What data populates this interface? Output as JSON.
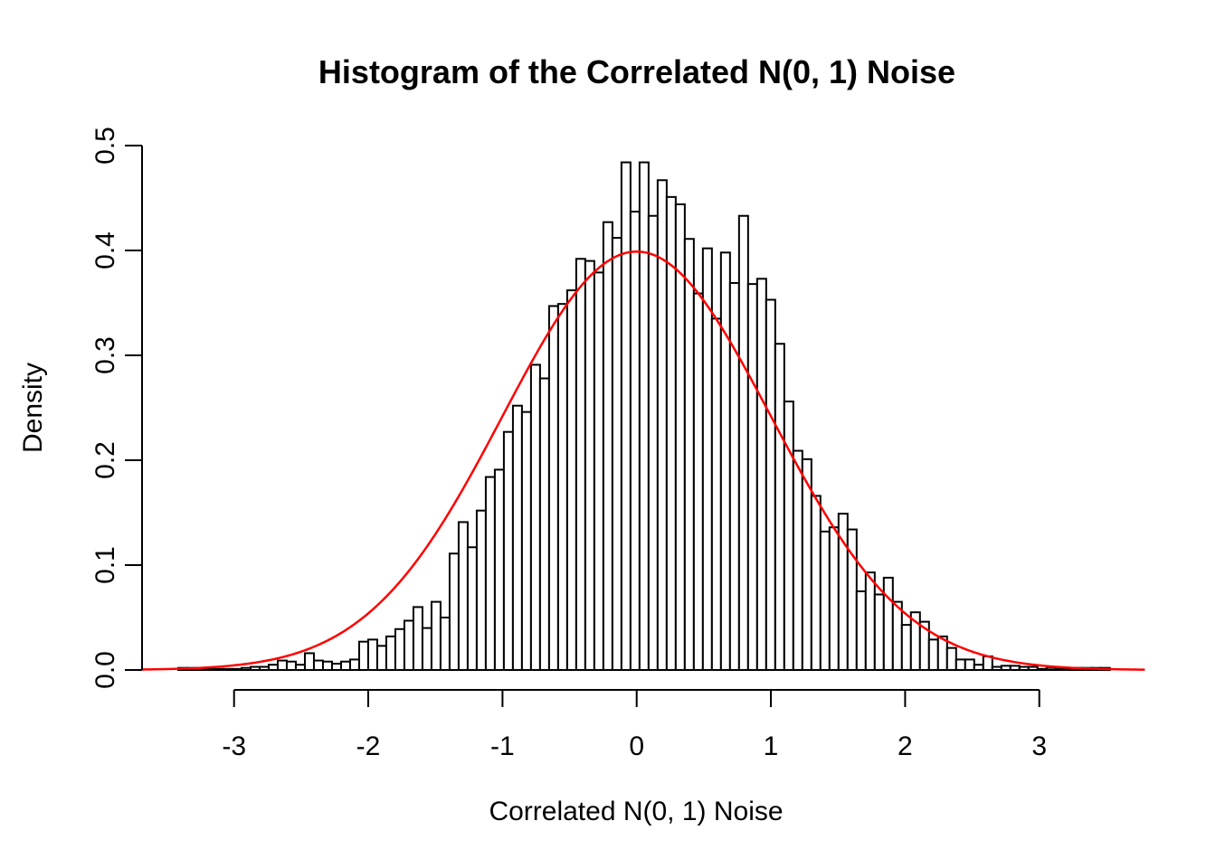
{
  "figure": {
    "title": "Histogram of the Correlated N(0, 1) Noise",
    "x_label": "Correlated N(0, 1) Noise",
    "y_label": "Density"
  },
  "chart_data": {
    "type": "bar",
    "subtype": "histogram",
    "title": "Histogram of the Correlated N(0, 1) Noise",
    "xlabel": "Correlated N(0, 1) Noise",
    "ylabel": "Density",
    "xlim": [
      -3.7,
      3.85
    ],
    "ylim": [
      0,
      0.5
    ],
    "grid": false,
    "x_tick_labels": [
      "-3",
      "-2",
      "-1",
      "0",
      "1",
      "2",
      "3"
    ],
    "x_tick_values": [
      -3,
      -2,
      -1,
      0,
      1,
      2,
      3
    ],
    "y_tick_labels": [
      "0.0",
      "0.1",
      "0.2",
      "0.3",
      "0.4",
      "0.5"
    ],
    "y_tick_values": [
      0.0,
      0.1,
      0.2,
      0.3,
      0.4,
      0.5
    ],
    "bins": {
      "start": -3.416,
      "width": 0.0674,
      "count": 103
    },
    "densities": [
      0.002,
      0.002,
      0.001,
      0.001,
      0.001,
      0.001,
      0.001,
      0.002,
      0.003,
      0.003,
      0.005,
      0.009,
      0.008,
      0.005,
      0.016,
      0.009,
      0.008,
      0.006,
      0.008,
      0.01,
      0.027,
      0.029,
      0.023,
      0.032,
      0.039,
      0.047,
      0.06,
      0.04,
      0.065,
      0.05,
      0.111,
      0.141,
      0.117,
      0.152,
      0.184,
      0.191,
      0.227,
      0.252,
      0.246,
      0.291,
      0.278,
      0.347,
      0.349,
      0.362,
      0.392,
      0.39,
      0.379,
      0.427,
      0.412,
      0.484,
      0.437,
      0.484,
      0.433,
      0.467,
      0.451,
      0.444,
      0.411,
      0.359,
      0.402,
      0.335,
      0.398,
      0.369,
      0.433,
      0.368,
      0.373,
      0.353,
      0.311,
      0.256,
      0.209,
      0.201,
      0.166,
      0.132,
      0.136,
      0.149,
      0.134,
      0.075,
      0.093,
      0.072,
      0.088,
      0.065,
      0.043,
      0.055,
      0.046,
      0.029,
      0.032,
      0.021,
      0.01,
      0.01,
      0.005,
      0.013,
      0.003,
      0.004,
      0.004,
      0.003,
      0.003,
      0.001,
      0.002,
      0.001,
      0.001,
      0.002,
      0.002,
      0.002,
      0.002
    ],
    "bar_fill": "#FFFFFF",
    "bar_stroke": "#000000",
    "overlay_curve": {
      "name": "normal-pdf",
      "mean": 0,
      "sd": 1,
      "x_range": [
        -3.68,
        3.78
      ],
      "color": "#FF0000"
    },
    "text_color": "#000000"
  }
}
